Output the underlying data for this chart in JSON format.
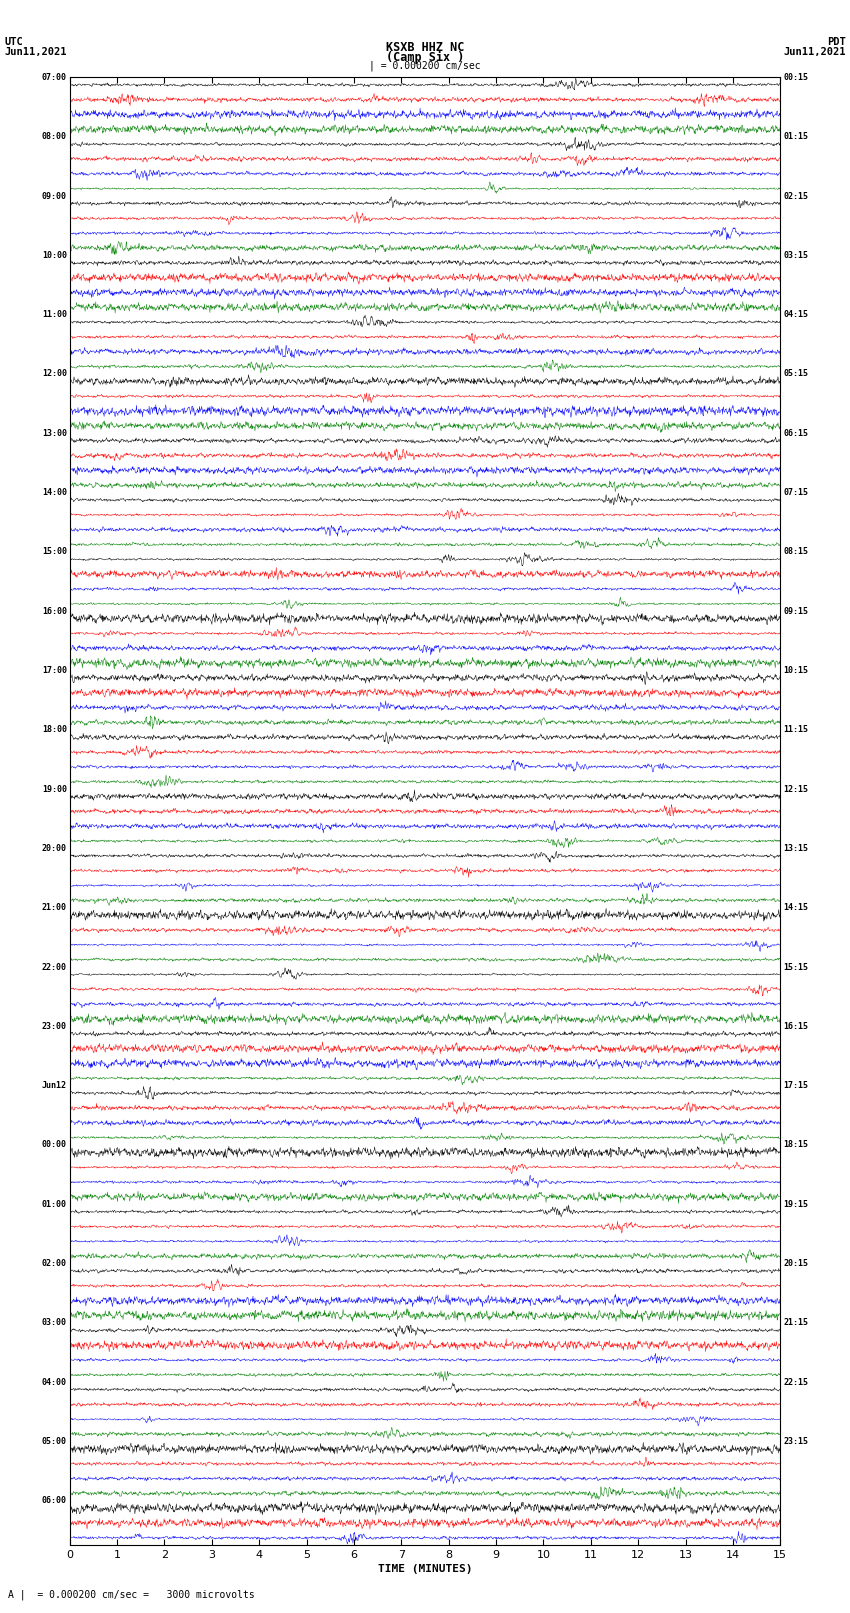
{
  "title_line1": "KSXB HHZ NC",
  "title_line2": "(Camp Six )",
  "title_line3": "| = 0.000200 cm/sec",
  "left_label_line1": "UTC",
  "left_label_line2": "Jun11,2021",
  "right_label_line1": "PDT",
  "right_label_line2": "Jun11,2021",
  "xlabel": "TIME (MINUTES)",
  "bottom_note": "= 0.000200 cm/sec =   3000 microvolts",
  "utc_times": [
    "07:00",
    "",
    "",
    "",
    "08:00",
    "",
    "",
    "",
    "09:00",
    "",
    "",
    "",
    "10:00",
    "",
    "",
    "",
    "11:00",
    "",
    "",
    "",
    "12:00",
    "",
    "",
    "",
    "13:00",
    "",
    "",
    "",
    "14:00",
    "",
    "",
    "",
    "15:00",
    "",
    "",
    "",
    "16:00",
    "",
    "",
    "",
    "17:00",
    "",
    "",
    "",
    "18:00",
    "",
    "",
    "",
    "19:00",
    "",
    "",
    "",
    "20:00",
    "",
    "",
    "",
    "21:00",
    "",
    "",
    "",
    "22:00",
    "",
    "",
    "",
    "23:00",
    "",
    "",
    "",
    "Jun12",
    "",
    "",
    "",
    "00:00",
    "",
    "",
    "",
    "01:00",
    "",
    "",
    "",
    "02:00",
    "",
    "",
    "",
    "03:00",
    "",
    "",
    "",
    "04:00",
    "",
    "",
    "",
    "05:00",
    "",
    "",
    "",
    "06:00",
    "",
    ""
  ],
  "pdt_times": [
    "00:15",
    "",
    "",
    "",
    "01:15",
    "",
    "",
    "",
    "02:15",
    "",
    "",
    "",
    "03:15",
    "",
    "",
    "",
    "04:15",
    "",
    "",
    "",
    "05:15",
    "",
    "",
    "",
    "06:15",
    "",
    "",
    "",
    "07:15",
    "",
    "",
    "",
    "08:15",
    "",
    "",
    "",
    "09:15",
    "",
    "",
    "",
    "10:15",
    "",
    "",
    "",
    "11:15",
    "",
    "",
    "",
    "12:15",
    "",
    "",
    "",
    "13:15",
    "",
    "",
    "",
    "14:15",
    "",
    "",
    "",
    "15:15",
    "",
    "",
    "",
    "16:15",
    "",
    "",
    "",
    "17:15",
    "",
    "",
    "",
    "18:15",
    "",
    "",
    "",
    "19:15",
    "",
    "",
    "",
    "20:15",
    "",
    "",
    "",
    "21:15",
    "",
    "",
    "",
    "22:15",
    "",
    "",
    "",
    "23:15",
    "",
    "",
    "",
    "",
    "",
    ""
  ],
  "colors": [
    "black",
    "red",
    "blue",
    "green"
  ],
  "n_traces_per_hour": 4,
  "n_hours": 24,
  "extra_rows": 3,
  "x_min": 0,
  "x_max": 15,
  "x_ticks": [
    0,
    1,
    2,
    3,
    4,
    5,
    6,
    7,
    8,
    9,
    10,
    11,
    12,
    13,
    14,
    15
  ],
  "figure_width": 8.5,
  "figure_height": 16.13,
  "dpi": 100,
  "bg_color": "white",
  "trace_lw": 0.35
}
